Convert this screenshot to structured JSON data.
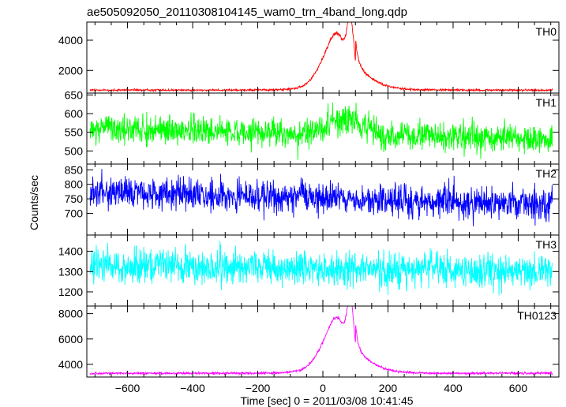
{
  "chart_data": {
    "type": "line",
    "title": "ae505092050_20110308104145_wam0_trn_4band_long.qdp",
    "xlabel": "Time [sec] 0 = 2011/03/08 10:41:45",
    "ylabel": "Counts/sec",
    "xlim": [
      -725,
      725
    ],
    "x_ticks": [
      -600,
      -400,
      -200,
      0,
      200,
      400,
      600
    ],
    "grid": false,
    "panels": [
      {
        "name": "TH0",
        "color": "#ff0000",
        "ylim": [
          500,
          5200
        ],
        "y_ticks": [
          2000,
          4000
        ],
        "baseline": 700,
        "noise": 40,
        "burst": [
          {
            "center": 20,
            "width": 35,
            "amplitude": 1700
          },
          {
            "center": 50,
            "width": 25,
            "amplitude": 1900
          },
          {
            "center": 85,
            "width": 10,
            "amplitude": 3300
          },
          {
            "center": 65,
            "width": 80,
            "amplitude": 600
          }
        ],
        "tail": {
          "start": 100,
          "decay": 40,
          "amplitude": 1500
        }
      },
      {
        "name": "TH1",
        "color": "#00ff00",
        "ylim": [
          465,
          655
        ],
        "y_ticks": [
          500,
          550,
          600,
          650
        ],
        "baseline_start": 560,
        "baseline_end": 530,
        "noise": 25,
        "burst": [
          {
            "center": 75,
            "width": 50,
            "amplitude": 45
          }
        ]
      },
      {
        "name": "TH2",
        "color": "#0000ff",
        "ylim": [
          625,
          870
        ],
        "y_ticks": [
          700,
          750,
          800,
          850
        ],
        "baseline_start": 775,
        "baseline_end": 730,
        "noise": 35,
        "burst": []
      },
      {
        "name": "TH3",
        "color": "#00ffff",
        "ylim": [
          1130,
          1480
        ],
        "y_ticks": [
          1200,
          1300,
          1400
        ],
        "baseline_start": 1330,
        "baseline_end": 1300,
        "noise": 55,
        "burst": []
      },
      {
        "name": "TH0123",
        "color": "#ff00ff",
        "ylim": [
          3000,
          8600
        ],
        "y_ticks": [
          4000,
          6000,
          8000
        ],
        "baseline": 3300,
        "noise": 55,
        "burst": [
          {
            "center": 20,
            "width": 35,
            "amplitude": 2000
          },
          {
            "center": 50,
            "width": 25,
            "amplitude": 2200
          },
          {
            "center": 85,
            "width": 10,
            "amplitude": 4200
          },
          {
            "center": 65,
            "width": 80,
            "amplitude": 700
          }
        ],
        "tail": {
          "start": 100,
          "decay": 40,
          "amplitude": 1600
        }
      }
    ],
    "series": [
      {
        "name": "TH0",
        "x_range": [
          -715,
          705
        ],
        "bin_seconds": 1
      },
      {
        "name": "TH1",
        "x_range": [
          -715,
          705
        ],
        "bin_seconds": 1
      },
      {
        "name": "TH2",
        "x_range": [
          -715,
          705
        ],
        "bin_seconds": 1
      },
      {
        "name": "TH3",
        "x_range": [
          -715,
          705
        ],
        "bin_seconds": 1
      },
      {
        "name": "TH0123",
        "x_range": [
          -715,
          705
        ],
        "bin_seconds": 1
      }
    ]
  }
}
